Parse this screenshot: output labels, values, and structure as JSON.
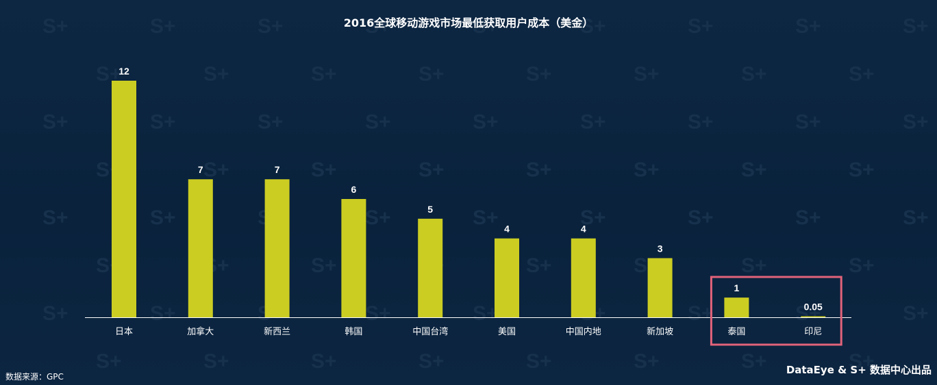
{
  "chart_data": {
    "type": "bar",
    "title": "2016全球移动游戏市场最低获取用户成本（美金）",
    "xlabel": "",
    "ylabel": "",
    "categories": [
      "日本",
      "加拿大",
      "新西兰",
      "韩国",
      "中国台湾",
      "美国",
      "中国内地",
      "新加坡",
      "泰国",
      "印尼"
    ],
    "values": [
      12,
      7,
      7,
      6,
      5,
      4,
      4,
      3,
      1,
      0.05
    ],
    "value_labels": [
      "12",
      "7",
      "7",
      "6",
      "5",
      "4",
      "4",
      "3",
      "1",
      "0.05"
    ],
    "ylim": [
      0,
      12
    ],
    "grid": false,
    "legend": "none",
    "highlight_categories": [
      "泰国",
      "印尼"
    ]
  },
  "footer": {
    "source": "数据来源：GPC",
    "credit": "DataEye & S+ 数据中心出品"
  },
  "watermark": {
    "text": "S+"
  },
  "colors": {
    "background": "#0c2541",
    "bar": "#cbcd22",
    "highlight_box": "#e2637a",
    "axis": "#ffffff",
    "text": "#ffffff"
  }
}
